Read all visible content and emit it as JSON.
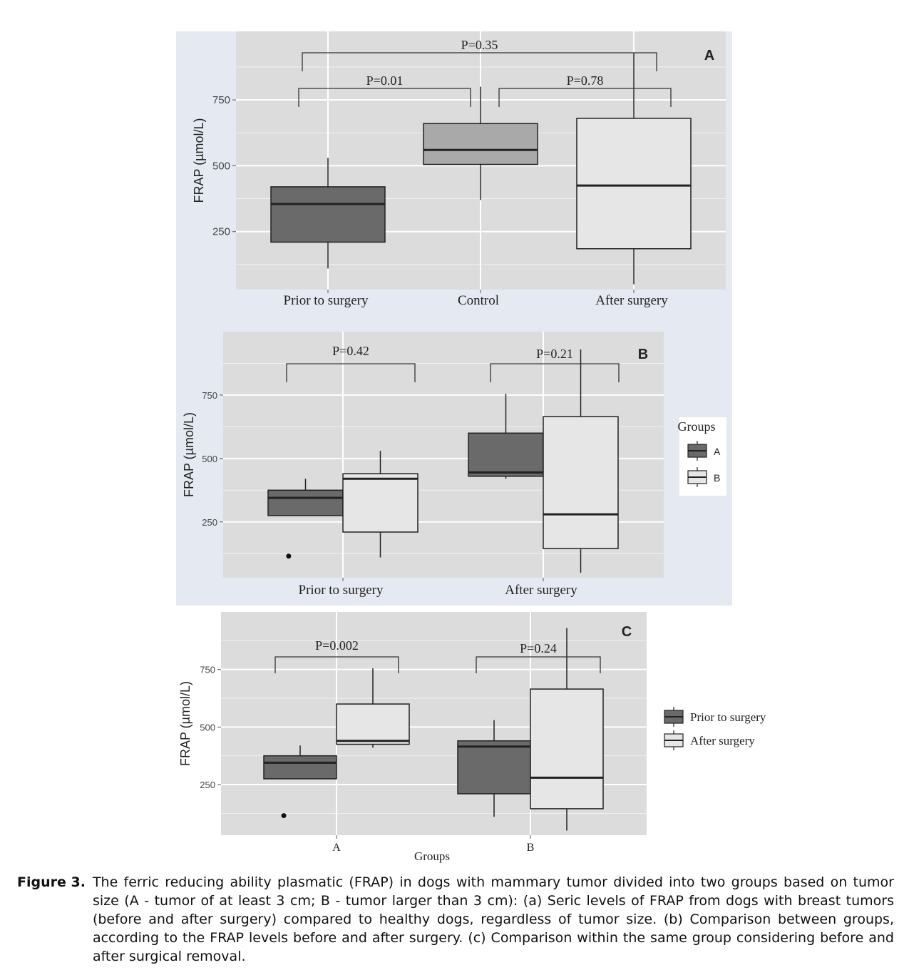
{
  "colors": {
    "panel_background": "#e5eaf2",
    "plot_background": "#dcdcdc",
    "grid_line": "#ffffff",
    "dark_box": "#6a6a6a",
    "light_box": "#e6e6e6",
    "stroke": "#222222"
  },
  "caption": {
    "label": "Figure 3.",
    "text": "The ferric reducing ability plasmatic (FRAP) in dogs with mammary tumor divided into two groups based on tumor size (A - tumor of at least 3 cm; B - tumor larger than 3 cm): (a) Seric levels of FRAP from dogs with breast tumors (before and after surgery) compared to healthy dogs, regardless of tumor size. (b) Comparison between groups, according to the FRAP levels before and after surgery. (c) Comparison within the same group considering before and after surgical removal."
  },
  "chart_data": [
    {
      "panel": "A",
      "type": "box",
      "ylabel": "FRAP (µmol/L)",
      "xlabel": "",
      "yticks": [
        250,
        500,
        750
      ],
      "ylim": [
        30,
        1010
      ],
      "categories": [
        "Prior to surgery",
        "Control",
        "After surgery"
      ],
      "boxes": [
        {
          "category": "Prior to surgery",
          "fill": "dark",
          "whisker_low": 110,
          "q1": 210,
          "median": 355,
          "q3": 420,
          "whisker_high": 530
        },
        {
          "category": "Control",
          "fill": "mid",
          "whisker_low": 370,
          "q1": 505,
          "median": 560,
          "q3": 660,
          "whisker_high": 800
        },
        {
          "category": "After surgery",
          "fill": "light",
          "whisker_low": 50,
          "q1": 185,
          "median": 425,
          "q3": 680,
          "whisker_high": 930
        }
      ],
      "comparisons": [
        {
          "label": "P=0.01",
          "from": "Prior to surgery",
          "to": "Control"
        },
        {
          "label": "P=0.78",
          "from": "Control",
          "to": "After surgery"
        },
        {
          "label": "P=0.35",
          "from": "Prior to surgery",
          "to": "After surgery"
        }
      ]
    },
    {
      "panel": "B",
      "type": "box",
      "ylabel": "FRAP (µmol/L)",
      "xlabel": "",
      "yticks": [
        250,
        500,
        750
      ],
      "ylim": [
        30,
        1000
      ],
      "categories": [
        "Prior to surgery",
        "After surgery"
      ],
      "legend": {
        "title": "Groups",
        "entries": [
          {
            "name": "A",
            "fill": "dark"
          },
          {
            "name": "B",
            "fill": "light"
          }
        ],
        "position": "right"
      },
      "series": [
        {
          "name": "A",
          "boxes": [
            {
              "category": "Prior to surgery",
              "whisker_low": 275,
              "q1": 275,
              "median": 345,
              "q3": 375,
              "whisker_high": 420,
              "outliers": [
                115
              ]
            },
            {
              "category": "After surgery",
              "whisker_low": 420,
              "q1": 430,
              "median": 445,
              "q3": 600,
              "whisker_high": 755
            }
          ]
        },
        {
          "name": "B",
          "boxes": [
            {
              "category": "Prior to surgery",
              "whisker_low": 110,
              "q1": 210,
              "median": 420,
              "q3": 440,
              "whisker_high": 530
            },
            {
              "category": "After surgery",
              "whisker_low": 50,
              "q1": 145,
              "median": 280,
              "q3": 665,
              "whisker_high": 930
            }
          ]
        }
      ],
      "comparisons": [
        {
          "label": "P=0.42",
          "at": "Prior to surgery"
        },
        {
          "label": "P=0.21",
          "at": "After surgery"
        }
      ]
    },
    {
      "panel": "C",
      "type": "box",
      "ylabel": "FRAP (µmol/L)",
      "xlabel": "Groups",
      "yticks": [
        250,
        500,
        750
      ],
      "ylim": [
        30,
        1000
      ],
      "categories": [
        "A",
        "B"
      ],
      "legend": {
        "title": "",
        "entries": [
          {
            "name": "Prior to surgery",
            "fill": "dark"
          },
          {
            "name": "After surgery",
            "fill": "light"
          }
        ],
        "position": "right"
      },
      "series": [
        {
          "name": "Prior to surgery",
          "boxes": [
            {
              "category": "A",
              "whisker_low": 275,
              "q1": 275,
              "median": 345,
              "q3": 375,
              "whisker_high": 420,
              "outliers": [
                115
              ]
            },
            {
              "category": "B",
              "whisker_low": 110,
              "q1": 210,
              "median": 415,
              "q3": 440,
              "whisker_high": 530
            }
          ]
        },
        {
          "name": "After surgery",
          "boxes": [
            {
              "category": "A",
              "whisker_low": 410,
              "q1": 425,
              "median": 440,
              "q3": 600,
              "whisker_high": 755
            },
            {
              "category": "B",
              "whisker_low": 50,
              "q1": 145,
              "median": 280,
              "q3": 665,
              "whisker_high": 930
            }
          ]
        }
      ],
      "comparisons": [
        {
          "label": "P=0.002",
          "at": "A"
        },
        {
          "label": "P=0.24",
          "at": "B"
        }
      ]
    }
  ]
}
